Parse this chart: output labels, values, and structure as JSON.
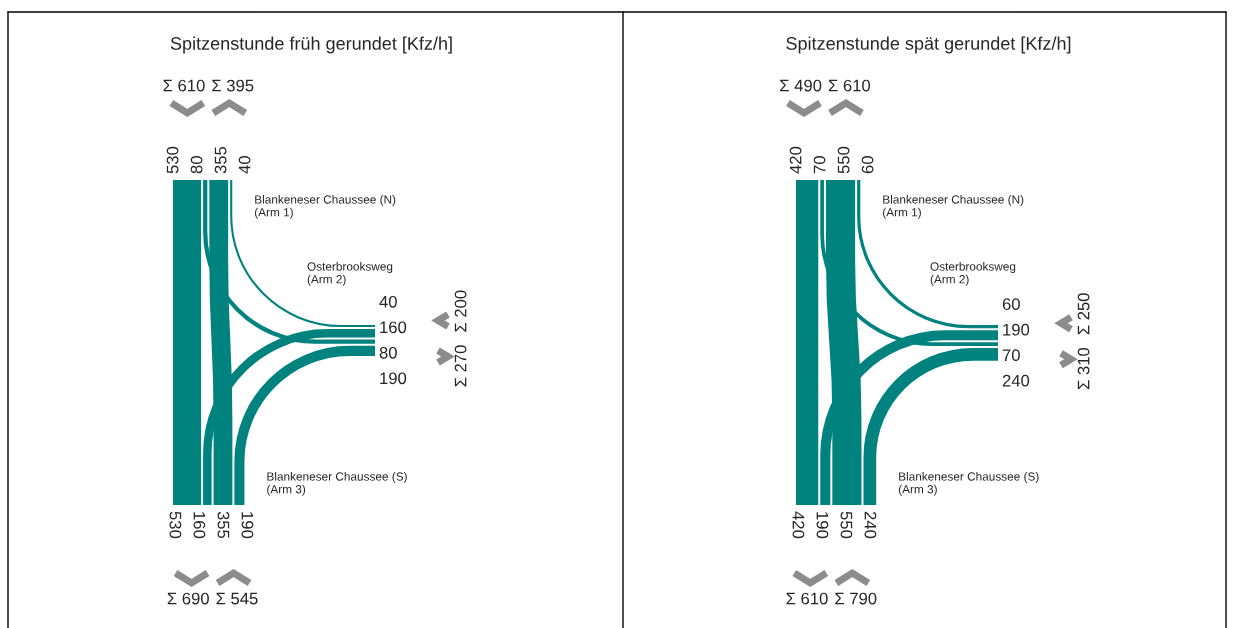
{
  "chart_data": [
    {
      "type": "other",
      "title": "Spitzenstunde früh gerundet [Kfz/h]",
      "categories": [
        null,
        null,
        null,
        null,
        null,
        null,
        null,
        null,
        null,
        null,
        null,
        null
      ],
      "values": [
        530,
        80,
        355,
        40,
        40,
        160,
        80,
        190,
        530,
        160,
        355,
        190
      ],
      "value_labels": [
        "530",
        "80",
        "355",
        "40",
        "40",
        "160",
        "80",
        "190",
        "530",
        "160",
        "355",
        "190"
      ],
      "color": "#00827f",
      "annotations": [
        "Σ 610",
        "Σ 395",
        "Σ 200",
        "Σ 270",
        "Σ 690",
        "Σ 545",
        "Blankeneser Chaussee (N)\n(Arm 1)",
        "Osterbrooksweg\n(Arm 2)",
        "Blankeneser Chaussee (S)\n(Arm 3)"
      ]
    },
    {
      "type": "other",
      "title": "Spitzenstunde spät gerundet [Kfz/h]",
      "categories": [
        null,
        null,
        null,
        null,
        null,
        null,
        null,
        null,
        null,
        null,
        null,
        null
      ],
      "values": [
        420,
        70,
        550,
        60,
        60,
        190,
        70,
        240,
        420,
        190,
        550,
        240
      ],
      "value_labels": [
        "420",
        "70",
        "550",
        "60",
        "60",
        "190",
        "70",
        "240",
        "420",
        "190",
        "550",
        "240"
      ],
      "color": "#00827f",
      "annotations": [
        "Σ 490",
        "Σ 610",
        "Σ 250",
        "Σ 310",
        "Σ 610",
        "Σ 790",
        "Blankeneser Chaussee (N)\n(Arm 1)",
        "Osterbrooksweg\n(Arm 2)",
        "Blankeneser Chaussee (S)\n(Arm 3)"
      ]
    }
  ]
}
